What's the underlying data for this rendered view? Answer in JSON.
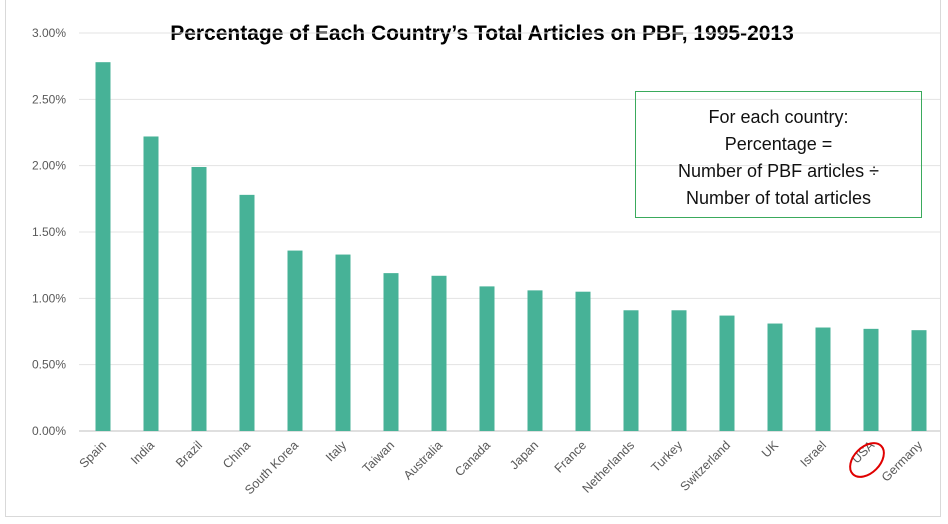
{
  "chart_data": {
    "type": "bar",
    "title": "Percentage of Each Country’s Total Articles on PBF, 1995-2013",
    "xlabel": "",
    "ylabel": "",
    "ylim": [
      0,
      3.0
    ],
    "yticks": [
      "0.00%",
      "0.50%",
      "1.00%",
      "1.50%",
      "2.00%",
      "2.50%",
      "3.00%"
    ],
    "grid": true,
    "categories": [
      "Spain",
      "India",
      "Brazil",
      "China",
      "South Korea",
      "Italy",
      "Taiwan",
      "Australia",
      "Canada",
      "Japan",
      "France",
      "Netherlands",
      "Turkey",
      "Switzerland",
      "UK",
      "Israel",
      "USA",
      "Germany"
    ],
    "values": [
      2.78,
      2.22,
      1.99,
      1.78,
      1.36,
      1.33,
      1.19,
      1.17,
      1.09,
      1.06,
      1.05,
      0.91,
      0.91,
      0.87,
      0.81,
      0.78,
      0.77,
      0.76
    ],
    "bar_color": "#47b297",
    "highlight": {
      "category": "USA",
      "color": "#e00000"
    },
    "annotation": [
      "For each country:",
      "Percentage =",
      "Number of PBF articles ÷",
      "Number of total articles"
    ]
  }
}
